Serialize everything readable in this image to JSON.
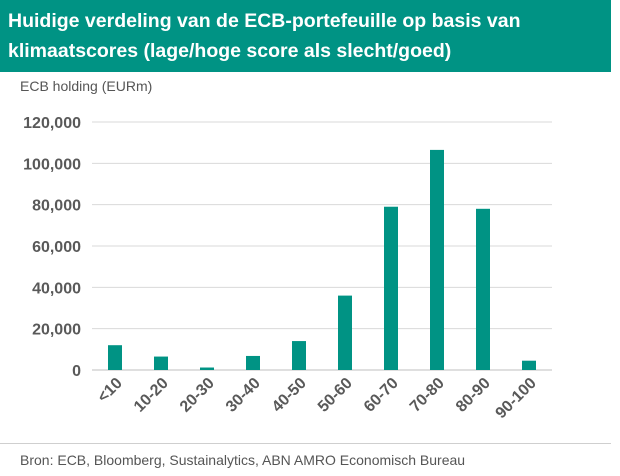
{
  "title": "Huidige verdeling van de ECB-portefeuille op basis van klimaatscores (lage/hoge score als slecht/goed)",
  "source": "Bron: ECB, Bloomberg, Sustainalytics, ABN AMRO Economisch Bureau",
  "colors": {
    "header": "#009384",
    "bar": "#009384",
    "grid": "#d9d9d9",
    "axis_text": "#595959"
  },
  "chart_data": {
    "type": "bar",
    "title": "Huidige verdeling van de ECB-portefeuille op basis van klimaatscores (lage/hoge score als slecht/goed)",
    "ylabel": "ECB holding (EURm)",
    "xlabel": "",
    "categories": [
      "<10",
      "10-20",
      "20-30",
      "30-40",
      "40-50",
      "50-60",
      "60-70",
      "70-80",
      "80-90",
      "90-100"
    ],
    "values": [
      12000,
      6500,
      1200,
      6800,
      14000,
      36000,
      79000,
      106500,
      78000,
      4500
    ],
    "ylim": [
      0,
      120000
    ],
    "yticks": [
      0,
      20000,
      40000,
      60000,
      80000,
      100000,
      120000
    ],
    "ytick_labels": [
      "0",
      "20,000",
      "40,000",
      "60,000",
      "80,000",
      "100,000",
      "120,000"
    ],
    "grid": true,
    "legend": "none"
  }
}
